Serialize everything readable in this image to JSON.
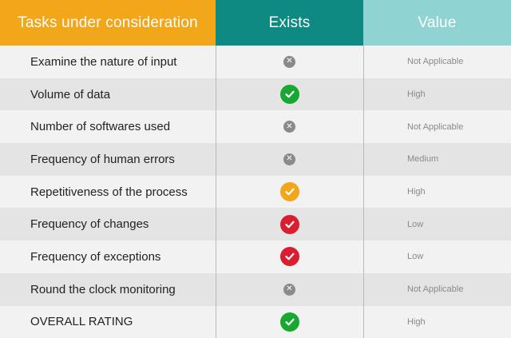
{
  "headers": {
    "tasks": "Tasks under consideration",
    "exists": "Exists",
    "value": "Value"
  },
  "colors": {
    "tasks_header": "#f2a61a",
    "exists_header": "#0e8a83",
    "value_header": "#8fd4d2",
    "check_green": "#17a832",
    "check_orange": "#f2a61a",
    "check_red": "#d91e30",
    "cross_gray": "#8a8a8a"
  },
  "rows": [
    {
      "task": "Examine the nature of input",
      "status": "cross-icon",
      "value": "Not Applicable"
    },
    {
      "task": "Volume of data",
      "status": "green-check-icon",
      "value": "High"
    },
    {
      "task": "Number of softwares used",
      "status": "cross-icon",
      "value": "Not Applicable"
    },
    {
      "task": "Frequency of human errors",
      "status": "cross-icon",
      "value": "Medium"
    },
    {
      "task": "Repetitiveness of the process",
      "status": "orange-check-icon",
      "value": "High"
    },
    {
      "task": "Frequency of changes",
      "status": "red-check-icon",
      "value": "Low"
    },
    {
      "task": "Frequency of exceptions",
      "status": "red-check-icon",
      "value": "Low"
    },
    {
      "task": "Round the clock monitoring",
      "status": "cross-icon",
      "value": "Not Applicable"
    },
    {
      "task": "OVERALL RATING",
      "status": "green-check-icon",
      "value": "High"
    }
  ]
}
